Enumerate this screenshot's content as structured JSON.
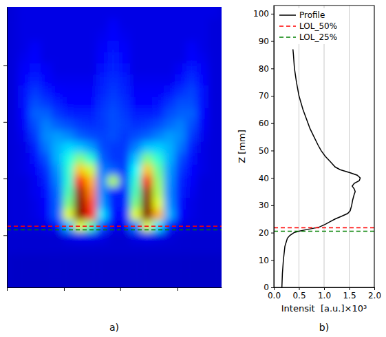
{
  "chart_data": [
    {
      "type": "heatmap",
      "label": "a)",
      "x_edges": [
        0,
        4,
        8,
        12,
        16,
        20,
        24,
        28,
        32,
        36,
        40,
        44,
        48,
        52,
        56,
        60,
        64,
        68,
        72,
        76,
        80
      ],
      "y_edges": [
        0,
        4,
        8,
        12,
        16,
        20,
        24,
        28,
        32,
        36,
        40,
        44,
        48,
        52,
        56,
        60,
        64,
        68,
        72,
        76,
        80,
        84,
        88,
        92,
        96,
        100,
        104
      ],
      "z": [
        [
          0.07,
          0.07,
          0.07,
          0.07,
          0.07,
          0.07,
          0.07,
          0.07,
          0.07,
          0.07,
          0.07,
          0.07,
          0.07,
          0.07,
          0.07,
          0.07,
          0.07,
          0.07,
          0.07,
          0.07
        ],
        [
          0.07,
          0.07,
          0.07,
          0.07,
          0.07,
          0.07,
          0.07,
          0.07,
          0.07,
          0.07,
          0.07,
          0.07,
          0.07,
          0.07,
          0.07,
          0.07,
          0.07,
          0.07,
          0.07,
          0.07
        ],
        [
          0.07,
          0.07,
          0.07,
          0.07,
          0.07,
          0.07,
          0.07,
          0.07,
          0.07,
          0.07,
          0.07,
          0.07,
          0.07,
          0.07,
          0.07,
          0.07,
          0.07,
          0.07,
          0.07,
          0.07
        ],
        [
          0.08,
          0.08,
          0.08,
          0.08,
          0.08,
          0.08,
          0.08,
          0.08,
          0.08,
          0.08,
          0.08,
          0.08,
          0.08,
          0.08,
          0.08,
          0.08,
          0.08,
          0.08,
          0.08,
          0.08
        ],
        [
          0.08,
          0.08,
          0.08,
          0.08,
          0.08,
          0.1,
          0.11,
          0.11,
          0.1,
          0.08,
          0.08,
          0.1,
          0.11,
          0.1,
          0.09,
          0.08,
          0.08,
          0.08,
          0.08,
          0.08
        ],
        [
          0.09,
          0.09,
          0.09,
          0.1,
          0.14,
          0.3,
          0.6,
          0.45,
          0.2,
          0.11,
          0.11,
          0.25,
          0.6,
          0.35,
          0.15,
          0.1,
          0.09,
          0.09,
          0.09,
          0.09
        ],
        [
          0.09,
          0.09,
          0.1,
          0.12,
          0.22,
          0.6,
          1.0,
          0.85,
          0.35,
          0.14,
          0.14,
          0.6,
          1.0,
          0.7,
          0.3,
          0.13,
          0.1,
          0.09,
          0.09,
          0.09
        ],
        [
          0.09,
          0.09,
          0.1,
          0.13,
          0.22,
          0.5,
          1.0,
          0.8,
          0.28,
          0.15,
          0.15,
          0.5,
          1.0,
          0.6,
          0.27,
          0.14,
          0.1,
          0.09,
          0.09,
          0.09
        ],
        [
          0.09,
          0.09,
          0.11,
          0.14,
          0.23,
          0.45,
          0.97,
          0.75,
          0.26,
          0.16,
          0.16,
          0.45,
          0.97,
          0.55,
          0.26,
          0.15,
          0.11,
          0.09,
          0.09,
          0.09
        ],
        [
          0.09,
          0.09,
          0.11,
          0.15,
          0.25,
          0.42,
          0.88,
          0.7,
          0.26,
          0.55,
          0.2,
          0.42,
          0.88,
          0.52,
          0.27,
          0.16,
          0.12,
          0.09,
          0.09,
          0.09
        ],
        [
          0.09,
          0.1,
          0.12,
          0.17,
          0.27,
          0.42,
          0.68,
          0.58,
          0.25,
          0.22,
          0.18,
          0.38,
          0.68,
          0.48,
          0.28,
          0.18,
          0.13,
          0.1,
          0.09,
          0.09
        ],
        [
          0.09,
          0.1,
          0.14,
          0.2,
          0.3,
          0.4,
          0.5,
          0.42,
          0.22,
          0.18,
          0.18,
          0.32,
          0.5,
          0.42,
          0.3,
          0.2,
          0.14,
          0.1,
          0.09,
          0.09
        ],
        [
          0.09,
          0.1,
          0.15,
          0.24,
          0.3,
          0.34,
          0.32,
          0.28,
          0.2,
          0.18,
          0.18,
          0.25,
          0.32,
          0.33,
          0.3,
          0.24,
          0.15,
          0.1,
          0.09,
          0.09
        ],
        [
          0.09,
          0.11,
          0.18,
          0.26,
          0.28,
          0.26,
          0.22,
          0.2,
          0.19,
          0.2,
          0.18,
          0.2,
          0.22,
          0.25,
          0.28,
          0.26,
          0.18,
          0.11,
          0.09,
          0.09
        ],
        [
          0.09,
          0.12,
          0.2,
          0.25,
          0.22,
          0.2,
          0.18,
          0.17,
          0.18,
          0.2,
          0.19,
          0.17,
          0.18,
          0.2,
          0.23,
          0.25,
          0.2,
          0.12,
          0.09,
          0.09
        ],
        [
          0.09,
          0.13,
          0.22,
          0.22,
          0.18,
          0.16,
          0.15,
          0.15,
          0.18,
          0.2,
          0.18,
          0.15,
          0.15,
          0.16,
          0.2,
          0.22,
          0.22,
          0.13,
          0.09,
          0.09
        ],
        [
          0.09,
          0.14,
          0.2,
          0.18,
          0.15,
          0.13,
          0.13,
          0.13,
          0.17,
          0.19,
          0.17,
          0.13,
          0.13,
          0.14,
          0.17,
          0.2,
          0.2,
          0.14,
          0.09,
          0.09
        ],
        [
          0.09,
          0.14,
          0.18,
          0.15,
          0.13,
          0.12,
          0.12,
          0.12,
          0.16,
          0.18,
          0.16,
          0.12,
          0.12,
          0.12,
          0.14,
          0.17,
          0.19,
          0.14,
          0.09,
          0.09
        ],
        [
          0.09,
          0.13,
          0.16,
          0.13,
          0.11,
          0.11,
          0.11,
          0.11,
          0.15,
          0.17,
          0.15,
          0.11,
          0.11,
          0.11,
          0.11,
          0.14,
          0.17,
          0.13,
          0.09,
          0.09
        ],
        [
          0.09,
          0.12,
          0.14,
          0.12,
          0.1,
          0.1,
          0.1,
          0.1,
          0.14,
          0.16,
          0.14,
          0.1,
          0.1,
          0.1,
          0.1,
          0.12,
          0.15,
          0.12,
          0.09,
          0.09
        ],
        [
          0.09,
          0.11,
          0.13,
          0.1,
          0.1,
          0.1,
          0.1,
          0.1,
          0.13,
          0.15,
          0.13,
          0.1,
          0.1,
          0.1,
          0.1,
          0.1,
          0.13,
          0.11,
          0.09,
          0.09
        ],
        [
          0.09,
          0.1,
          0.12,
          0.1,
          0.1,
          0.1,
          0.1,
          0.1,
          0.12,
          0.14,
          0.12,
          0.1,
          0.1,
          0.1,
          0.1,
          0.1,
          0.12,
          0.1,
          0.09,
          0.09
        ],
        [
          0.09,
          0.1,
          0.1,
          0.1,
          0.1,
          0.1,
          0.1,
          0.1,
          0.11,
          0.13,
          0.11,
          0.1,
          0.1,
          0.1,
          0.1,
          0.1,
          0.1,
          0.1,
          0.09,
          0.09
        ],
        [
          0.09,
          0.1,
          0.1,
          0.1,
          0.1,
          0.1,
          0.1,
          0.1,
          0.1,
          0.12,
          0.1,
          0.1,
          0.1,
          0.1,
          0.1,
          0.1,
          0.1,
          0.1,
          0.09,
          0.09
        ],
        [
          0.09,
          0.1,
          0.1,
          0.1,
          0.1,
          0.1,
          0.1,
          0.1,
          0.1,
          0.1,
          0.1,
          0.1,
          0.1,
          0.1,
          0.1,
          0.1,
          0.1,
          0.1,
          0.1,
          0.09
        ],
        [
          0.09,
          0.1,
          0.1,
          0.1,
          0.1,
          0.1,
          0.1,
          0.1,
          0.1,
          0.1,
          0.1,
          0.1,
          0.1,
          0.1,
          0.1,
          0.1,
          0.1,
          0.1,
          0.1,
          0.09
        ]
      ],
      "zlim": [
        0,
        1
      ],
      "xlim": [
        0,
        76.7
      ],
      "ylim": [
        0,
        100
      ],
      "xticks": [
        0,
        20.4,
        40.5,
        60.9
      ],
      "yticks": [
        18.6,
        38.8,
        59,
        79.1
      ],
      "tick_labels": false,
      "hlines": [
        {
          "value": 21.8,
          "color": "#ff0000",
          "line_style": "dashed"
        },
        {
          "value": 20.5,
          "color": "#008000",
          "line_style": "dashed"
        }
      ]
    },
    {
      "type": "line",
      "label": "b)",
      "xlabel": "Intensit  [a.u.]×10³",
      "ylabel": "Z [mm]",
      "xlim": [
        0,
        2
      ],
      "ylim": [
        0,
        103
      ],
      "xticks": [
        {
          "value": 0,
          "label": "0.0"
        },
        0.5,
        {
          "value": 1,
          "label": "1.0"
        },
        1.5,
        {
          "value": 2,
          "label": "2.0"
        }
      ],
      "yticks": [
        0,
        10,
        20,
        30,
        40,
        50,
        60,
        70,
        80,
        90,
        100
      ],
      "grid": "x",
      "legend": "upper left",
      "series": [
        {
          "name": "Profile",
          "color": "#000000",
          "line_style": "solid",
          "y": [
            0,
            5,
            10,
            15,
            18,
            19,
            20,
            20.5,
            21,
            21.5,
            22,
            23,
            24,
            25,
            26,
            27,
            28,
            30,
            32,
            34,
            35,
            36,
            37,
            38,
            39,
            40,
            41,
            42,
            43,
            44,
            46,
            48,
            50,
            52,
            55,
            58,
            60,
            65,
            70,
            75,
            80,
            85,
            87
          ],
          "values": [
            0.16,
            0.17,
            0.19,
            0.22,
            0.27,
            0.32,
            0.4,
            0.5,
            0.62,
            0.76,
            0.9,
            1.02,
            1.12,
            1.22,
            1.35,
            1.47,
            1.52,
            1.55,
            1.57,
            1.6,
            1.62,
            1.6,
            1.56,
            1.6,
            1.7,
            1.72,
            1.66,
            1.5,
            1.32,
            1.22,
            1.12,
            1.02,
            0.94,
            0.88,
            0.8,
            0.72,
            0.68,
            0.58,
            0.5,
            0.45,
            0.41,
            0.39,
            0.38
          ]
        },
        {
          "name": "LOL_50%",
          "type": "hline",
          "color": "#ff0000",
          "line_style": "dashed",
          "value": 21.8
        },
        {
          "name": "LOL_25%",
          "type": "hline",
          "color": "#008000",
          "line_style": "dashed",
          "value": 20.5
        }
      ]
    }
  ]
}
